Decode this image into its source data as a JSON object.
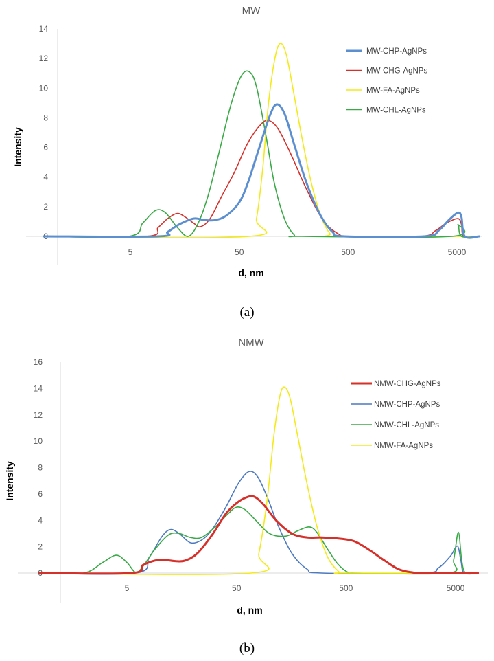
{
  "chart_data": [
    {
      "type": "line",
      "title": "MW",
      "xlabel": "d, nm",
      "ylabel": "Intensity",
      "x_scale": "log",
      "x_tick_labels": [
        "5",
        "50",
        "500",
        "5000"
      ],
      "x_ticks": [
        5,
        50,
        500,
        5000
      ],
      "ylim": [
        0,
        14
      ],
      "y_ticks": [
        0,
        2,
        4,
        6,
        8,
        10,
        12,
        14
      ],
      "caption": "(a)",
      "legend_position": "top-right",
      "series": [
        {
          "name": "MW-CHP-AgNPs",
          "color": "#5b8fd0",
          "width": 3,
          "points": [
            [
              0.8,
              0
            ],
            [
              9,
              0
            ],
            [
              11,
              0.3
            ],
            [
              14,
              0.8
            ],
            [
              19,
              1.2
            ],
            [
              24,
              1.1
            ],
            [
              30,
              1.1
            ],
            [
              38,
              1.4
            ],
            [
              50,
              2.3
            ],
            [
              60,
              3.6
            ],
            [
              75,
              5.8
            ],
            [
              95,
              8.1
            ],
            [
              110,
              8.9
            ],
            [
              130,
              8.3
            ],
            [
              160,
              6.2
            ],
            [
              210,
              3.5
            ],
            [
              280,
              1.4
            ],
            [
              360,
              0.3
            ],
            [
              460,
              0
            ],
            [
              2500,
              0
            ],
            [
              3400,
              0.4
            ],
            [
              4200,
              1.1
            ],
            [
              5100,
              1.6
            ],
            [
              5500,
              1.3
            ],
            [
              5900,
              0
            ],
            [
              8000,
              0
            ]
          ]
        },
        {
          "name": "MW-CHG-AgNPs",
          "color": "#d6302a",
          "width": 1.6,
          "points": [
            [
              0.8,
              0
            ],
            [
              7,
              0
            ],
            [
              9,
              0.6
            ],
            [
              11,
              1.2
            ],
            [
              13.5,
              1.55
            ],
            [
              16,
              1.3
            ],
            [
              19,
              0.9
            ],
            [
              22,
              0.65
            ],
            [
              27,
              1.2
            ],
            [
              35,
              2.8
            ],
            [
              45,
              4.3
            ],
            [
              60,
              6.3
            ],
            [
              80,
              7.6
            ],
            [
              95,
              7.8
            ],
            [
              115,
              7.2
            ],
            [
              150,
              5.5
            ],
            [
              210,
              3.1
            ],
            [
              300,
              1.0
            ],
            [
              420,
              0.1
            ],
            [
              500,
              0
            ],
            [
              2300,
              0
            ],
            [
              3200,
              0.4
            ],
            [
              4000,
              0.9
            ],
            [
              5100,
              1.2
            ],
            [
              5500,
              0.8
            ],
            [
              5800,
              0
            ],
            [
              8000,
              0
            ]
          ]
        },
        {
          "name": "MW-FA-AgNPs",
          "color": "#f4ea1a",
          "width": 1.6,
          "points": [
            [
              0.8,
              0
            ],
            [
              62,
              0
            ],
            [
              72,
              1.2
            ],
            [
              82,
              4.5
            ],
            [
              92,
              8.7
            ],
            [
              105,
              11.8
            ],
            [
              118,
              13.0
            ],
            [
              135,
              12.3
            ],
            [
              160,
              9.5
            ],
            [
              190,
              6.5
            ],
            [
              230,
              3.6
            ],
            [
              280,
              1.4
            ],
            [
              340,
              0.2
            ],
            [
              400,
              0
            ],
            [
              8000,
              0
            ]
          ]
        },
        {
          "name": "MW-CHL-AgNPs",
          "color": "#3aaa47",
          "width": 1.6,
          "points": [
            [
              0.8,
              0
            ],
            [
              4.8,
              0
            ],
            [
              6.5,
              0.9
            ],
            [
              8.5,
              1.75
            ],
            [
              10.5,
              1.6
            ],
            [
              13.5,
              0.6
            ],
            [
              17,
              0
            ],
            [
              21,
              0.9
            ],
            [
              26,
              2.8
            ],
            [
              33,
              5.8
            ],
            [
              42,
              8.9
            ],
            [
              52,
              10.8
            ],
            [
              62,
              11.1
            ],
            [
              72,
              10.1
            ],
            [
              88,
              6.8
            ],
            [
              105,
              3.6
            ],
            [
              130,
              1.2
            ],
            [
              160,
              0.1
            ],
            [
              190,
              0
            ],
            [
              4500,
              0
            ],
            [
              5100,
              0.8
            ],
            [
              5500,
              0
            ],
            [
              8000,
              0
            ]
          ]
        }
      ]
    },
    {
      "type": "line",
      "title": "NMW",
      "xlabel": "d, nm",
      "ylabel": "Intensity",
      "x_scale": "log",
      "x_tick_labels": [
        "5",
        "50",
        "500",
        "5000"
      ],
      "x_ticks": [
        5,
        50,
        500,
        5000
      ],
      "ylim": [
        0,
        16
      ],
      "y_ticks": [
        0,
        2,
        4,
        6,
        8,
        10,
        12,
        14,
        16
      ],
      "caption": "(b)",
      "legend_position": "top-right",
      "series": [
        {
          "name": "NMW-CHG-AgNPs",
          "color": "#d6302a",
          "width": 3,
          "points": [
            [
              0.8,
              0
            ],
            [
              5.5,
              0
            ],
            [
              7,
              0.6
            ],
            [
              9,
              0.95
            ],
            [
              11,
              1.0
            ],
            [
              14,
              0.9
            ],
            [
              17,
              0.95
            ],
            [
              22,
              1.5
            ],
            [
              30,
              2.9
            ],
            [
              40,
              4.5
            ],
            [
              50,
              5.3
            ],
            [
              60,
              5.7
            ],
            [
              72,
              5.8
            ],
            [
              88,
              5.2
            ],
            [
              115,
              4.0
            ],
            [
              160,
              3.0
            ],
            [
              220,
              2.7
            ],
            [
              300,
              2.7
            ],
            [
              450,
              2.6
            ],
            [
              600,
              2.4
            ],
            [
              800,
              1.8
            ],
            [
              1100,
              1.0
            ],
            [
              1500,
              0.3
            ],
            [
              2000,
              0.05
            ],
            [
              2500,
              0
            ],
            [
              8000,
              0
            ]
          ]
        },
        {
          "name": "NMW-CHP-AgNPs",
          "color": "#4c79c0",
          "width": 1.6,
          "points": [
            [
              0.8,
              0
            ],
            [
              6,
              0
            ],
            [
              8,
              1.2
            ],
            [
              10.5,
              2.8
            ],
            [
              12.5,
              3.3
            ],
            [
              15,
              3.0
            ],
            [
              19,
              2.3
            ],
            [
              24,
              2.5
            ],
            [
              30,
              3.3
            ],
            [
              40,
              5.0
            ],
            [
              52,
              6.8
            ],
            [
              65,
              7.7
            ],
            [
              78,
              7.3
            ],
            [
              95,
              5.8
            ],
            [
              120,
              3.6
            ],
            [
              160,
              1.5
            ],
            [
              220,
              0.3
            ],
            [
              300,
              0
            ],
            [
              2500,
              0
            ],
            [
              3500,
              0.4
            ],
            [
              4500,
              1.3
            ],
            [
              5200,
              2.05
            ],
            [
              5600,
              0.9
            ],
            [
              6000,
              0
            ],
            [
              8000,
              0
            ]
          ]
        },
        {
          "name": "NMW-CHL-AgNPs",
          "color": "#3aaa47",
          "width": 1.6,
          "points": [
            [
              0.8,
              0
            ],
            [
              2,
              0
            ],
            [
              3,
              0.8
            ],
            [
              4,
              1.35
            ],
            [
              5,
              0.8
            ],
            [
              6,
              0.05
            ],
            [
              7,
              0.5
            ],
            [
              9,
              1.8
            ],
            [
              12,
              2.9
            ],
            [
              15,
              3.0
            ],
            [
              19,
              2.7
            ],
            [
              24,
              2.7
            ],
            [
              32,
              3.5
            ],
            [
              42,
              4.5
            ],
            [
              50,
              5.0
            ],
            [
              60,
              4.8
            ],
            [
              75,
              4.0
            ],
            [
              100,
              3.0
            ],
            [
              140,
              2.8
            ],
            [
              180,
              3.2
            ],
            [
              230,
              3.5
            ],
            [
              270,
              3.1
            ],
            [
              340,
              1.8
            ],
            [
              420,
              0.7
            ],
            [
              520,
              0.05
            ],
            [
              600,
              0
            ],
            [
              4300,
              0
            ],
            [
              4800,
              1.0
            ],
            [
              5300,
              3.1
            ],
            [
              5700,
              0.9
            ],
            [
              6200,
              0
            ],
            [
              8000,
              0
            ]
          ]
        },
        {
          "name": "NMW-FA-AgNPs",
          "color": "#f4ea1a",
          "width": 1.6,
          "points": [
            [
              0.8,
              0
            ],
            [
              68,
              0
            ],
            [
              80,
              1.5
            ],
            [
              95,
              5.5
            ],
            [
              110,
              10.5
            ],
            [
              125,
              13.5
            ],
            [
              138,
              14.1
            ],
            [
              155,
              13.2
            ],
            [
              180,
              10.5
            ],
            [
              220,
              6.8
            ],
            [
              270,
              3.6
            ],
            [
              340,
              1.2
            ],
            [
              430,
              0.1
            ],
            [
              500,
              0
            ],
            [
              8000,
              0
            ]
          ]
        }
      ]
    }
  ]
}
